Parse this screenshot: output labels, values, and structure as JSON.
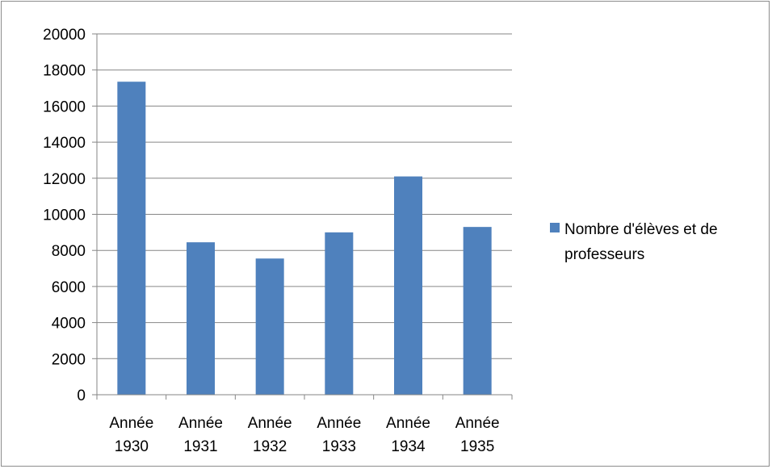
{
  "chart_data": {
    "type": "bar",
    "title": "",
    "xlabel": "",
    "ylabel": "",
    "categories": [
      [
        "Année",
        "1930"
      ],
      [
        "Année",
        "1931"
      ],
      [
        "Année",
        "1932"
      ],
      [
        "Année",
        "1933"
      ],
      [
        "Année",
        "1934"
      ],
      [
        "Année",
        "1935"
      ]
    ],
    "series": [
      {
        "name_lines": [
          "Nombre d'élèves et de",
          "professeurs"
        ],
        "color": "#4f81bd",
        "values": [
          17350,
          8450,
          7550,
          9000,
          12100,
          9300
        ]
      }
    ],
    "ylim": [
      0,
      20000
    ],
    "yticks": [
      0,
      2000,
      4000,
      6000,
      8000,
      10000,
      12000,
      14000,
      16000,
      18000,
      20000
    ],
    "grid": true,
    "legend_position": "right",
    "colors": {
      "gridline": "#868686",
      "frame": "#8c8c8c"
    }
  }
}
